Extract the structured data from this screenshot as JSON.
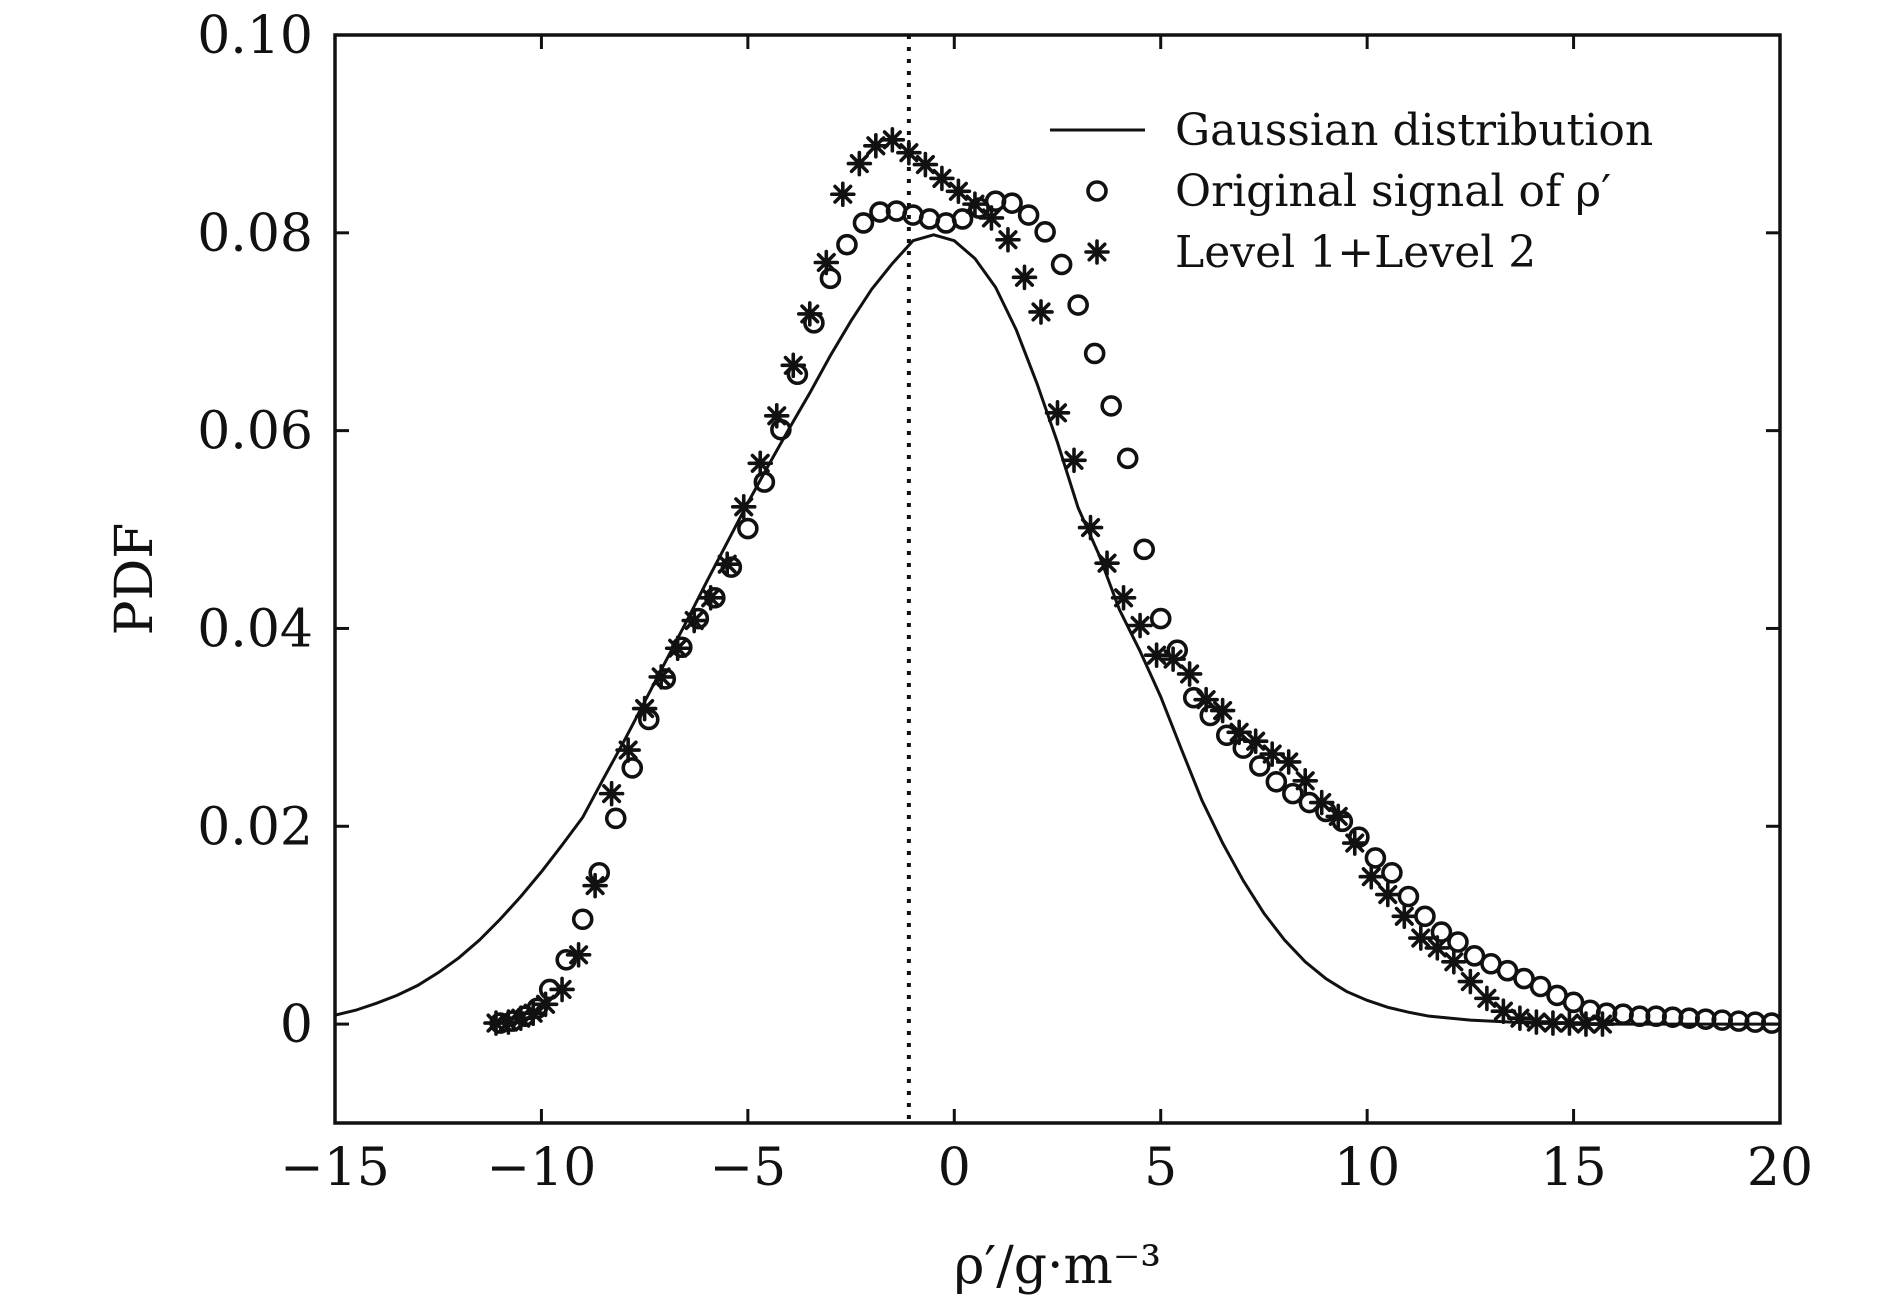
{
  "chart_data": {
    "type": "scatter",
    "title": "",
    "xlabel": "ρ′/g·m⁻³",
    "ylabel": "PDF",
    "xlim": [
      -15,
      20
    ],
    "ylim": [
      -0.01,
      0.1
    ],
    "x_ticks": [
      -15,
      -10,
      -5,
      0,
      5,
      10,
      15,
      20
    ],
    "x_tick_labels": [
      "−15",
      "−10",
      "−5",
      "0",
      "5",
      "10",
      "15",
      "20"
    ],
    "y_ticks": [
      0,
      0.02,
      0.04,
      0.06,
      0.08,
      0.1
    ],
    "y_tick_labels": [
      "0",
      "0.02",
      "0.04",
      "0.06",
      "0.08",
      "0.10"
    ],
    "grid": false,
    "legend_position": "top-right",
    "vertical_line_x": -1.1,
    "series": [
      {
        "name": "Gaussian distribution",
        "marker": "line",
        "x": [
          -15,
          -14.5,
          -14,
          -13.5,
          -13,
          -12.5,
          -12,
          -11.5,
          -11,
          -10.5,
          -10,
          -9.5,
          -9,
          -8.5,
          -8,
          -7.5,
          -7,
          -6.5,
          -6,
          -5.5,
          -5,
          -4.5,
          -4,
          -3.5,
          -3,
          -2.5,
          -2,
          -1.5,
          -1,
          -0.5,
          0,
          0.5,
          1,
          1.5,
          2,
          2.5,
          3,
          3.5,
          4,
          4.5,
          5,
          5.5,
          6,
          6.5,
          7,
          7.5,
          8,
          8.5,
          9,
          9.5,
          10,
          10.5,
          11,
          11.5,
          12,
          12.5,
          13,
          13.5,
          14,
          14.5,
          15,
          15.5,
          16,
          16.5,
          17,
          17.5,
          18,
          18.5,
          19,
          19.5,
          20
        ],
        "values": [
          0.0009,
          0.0014,
          0.0021,
          0.0029,
          0.0039,
          0.0052,
          0.0067,
          0.0085,
          0.0106,
          0.0129,
          0.0154,
          0.0181,
          0.0209,
          0.0248,
          0.0286,
          0.0326,
          0.0366,
          0.0406,
          0.0447,
          0.0487,
          0.0527,
          0.0565,
          0.0602,
          0.0638,
          0.0676,
          0.0711,
          0.0743,
          0.0769,
          0.0792,
          0.0798,
          0.0792,
          0.0774,
          0.0745,
          0.0702,
          0.0648,
          0.0588,
          0.0522,
          0.0475,
          0.0419,
          0.0377,
          0.0331,
          0.0278,
          0.0226,
          0.0183,
          0.0145,
          0.0112,
          0.0085,
          0.0063,
          0.0046,
          0.0033,
          0.0024,
          0.0017,
          0.0012,
          0.0008,
          0.0006,
          0.0004,
          0.0003,
          0.0002,
          0.0001,
          0.0001,
          0.0001,
          0.0,
          0.0,
          0.0,
          0.0,
          0.0,
          0.0,
          0.0,
          0.0,
          0.0,
          0.0
        ]
      },
      {
        "name": "Original signal of ρ′",
        "marker": "circle",
        "x": [
          -11.0,
          -10.7,
          -10.4,
          -10.1,
          -9.8,
          -9.4,
          -9.0,
          -8.6,
          -8.2,
          -7.8,
          -7.4,
          -7.0,
          -6.6,
          -6.2,
          -5.8,
          -5.4,
          -5.0,
          -4.6,
          -4.2,
          -3.8,
          -3.4,
          -3.0,
          -2.6,
          -2.2,
          -1.8,
          -1.4,
          -1.0,
          -0.6,
          -0.2,
          0.2,
          0.6,
          1.0,
          1.4,
          1.8,
          2.2,
          2.6,
          3.0,
          3.4,
          3.8,
          4.2,
          4.6,
          5.0,
          5.4,
          5.8,
          6.2,
          6.6,
          7.0,
          7.4,
          7.8,
          8.2,
          8.6,
          9.0,
          9.4,
          9.8,
          10.2,
          10.6,
          11.0,
          11.4,
          11.8,
          12.2,
          12.6,
          13.0,
          13.4,
          13.8,
          14.2,
          14.6,
          15.0,
          15.4,
          15.8,
          16.2,
          16.6,
          17.0,
          17.4,
          17.8,
          18.2,
          18.6,
          19.0,
          19.4,
          19.8
        ],
        "values": [
          0.0001,
          0.0003,
          0.0008,
          0.0016,
          0.0035,
          0.0065,
          0.0106,
          0.0153,
          0.0208,
          0.0259,
          0.0308,
          0.0349,
          0.0381,
          0.041,
          0.0431,
          0.0462,
          0.0501,
          0.0548,
          0.0601,
          0.0657,
          0.0709,
          0.0754,
          0.0788,
          0.081,
          0.0821,
          0.0822,
          0.0818,
          0.0814,
          0.081,
          0.0814,
          0.0825,
          0.0832,
          0.083,
          0.0818,
          0.0801,
          0.0768,
          0.0727,
          0.0678,
          0.0625,
          0.0572,
          0.048,
          0.041,
          0.0378,
          0.033,
          0.0312,
          0.0292,
          0.0279,
          0.0261,
          0.0245,
          0.0233,
          0.0224,
          0.0215,
          0.0205,
          0.0189,
          0.0168,
          0.0153,
          0.0129,
          0.0109,
          0.0093,
          0.0083,
          0.0069,
          0.0061,
          0.0054,
          0.0046,
          0.0038,
          0.0029,
          0.0022,
          0.0014,
          0.0011,
          0.001,
          0.0008,
          0.0008,
          0.0007,
          0.0006,
          0.0005,
          0.0004,
          0.0003,
          0.0002,
          0.0001
        ]
      },
      {
        "name": "Level 1+Level 2",
        "marker": "asterisk",
        "x": [
          -11.1,
          -10.8,
          -10.5,
          -10.2,
          -9.9,
          -9.5,
          -9.1,
          -8.7,
          -8.3,
          -7.9,
          -7.5,
          -7.1,
          -6.7,
          -6.3,
          -5.9,
          -5.5,
          -5.1,
          -4.7,
          -4.3,
          -3.9,
          -3.5,
          -3.1,
          -2.7,
          -2.3,
          -1.9,
          -1.5,
          -1.1,
          -0.7,
          -0.3,
          0.1,
          0.5,
          0.9,
          1.3,
          1.7,
          2.1,
          2.5,
          2.9,
          3.3,
          3.7,
          4.1,
          4.5,
          4.9,
          5.3,
          5.7,
          6.1,
          6.5,
          6.9,
          7.3,
          7.7,
          8.1,
          8.5,
          8.9,
          9.3,
          9.7,
          10.1,
          10.5,
          10.9,
          11.3,
          11.7,
          12.1,
          12.5,
          12.9,
          13.3,
          13.7,
          14.1,
          14.5,
          14.9,
          15.3,
          15.7
        ],
        "values": [
          0.0001,
          0.0002,
          0.0006,
          0.0011,
          0.002,
          0.0035,
          0.007,
          0.014,
          0.0233,
          0.0277,
          0.0319,
          0.0351,
          0.038,
          0.0408,
          0.0431,
          0.0465,
          0.0523,
          0.0567,
          0.0615,
          0.0666,
          0.0718,
          0.077,
          0.0839,
          0.087,
          0.0888,
          0.0894,
          0.0881,
          0.0869,
          0.0855,
          0.0842,
          0.0829,
          0.0815,
          0.0793,
          0.0755,
          0.072,
          0.0618,
          0.057,
          0.0502,
          0.0466,
          0.0431,
          0.0403,
          0.0373,
          0.0369,
          0.0354,
          0.0328,
          0.0317,
          0.0295,
          0.0286,
          0.0273,
          0.0265,
          0.0246,
          0.0224,
          0.021,
          0.0183,
          0.0149,
          0.0131,
          0.0109,
          0.0087,
          0.0077,
          0.0063,
          0.0043,
          0.0026,
          0.0013,
          0.0006,
          0.0002,
          0.0001,
          0.0001,
          0.0,
          0.0
        ]
      }
    ]
  }
}
